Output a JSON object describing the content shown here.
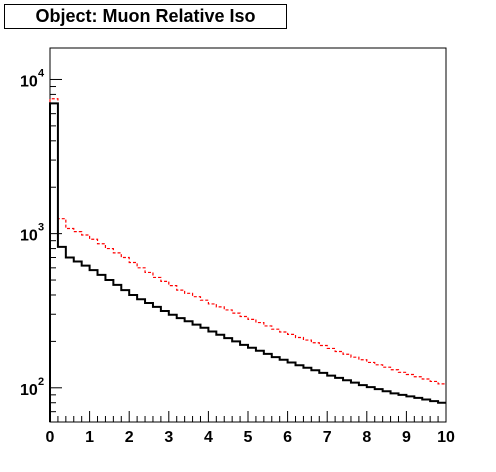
{
  "chart_data": {
    "type": "histogram",
    "title": "Object: Muon Relative Iso",
    "xlabel": "",
    "ylabel": "",
    "xlim": [
      0,
      10
    ],
    "ylim": [
      60,
      16000
    ],
    "yscale": "log",
    "grid": false,
    "x_ticks": [
      "0",
      "1",
      "2",
      "3",
      "4",
      "5",
      "6",
      "7",
      "8",
      "9",
      "10"
    ],
    "y_ticks": [
      {
        "base": "10",
        "exp": "2",
        "value": 100
      },
      {
        "base": "10",
        "exp": "3",
        "value": 1000
      },
      {
        "base": "10",
        "exp": "4",
        "value": 10000
      }
    ],
    "bin_edges_step": 0.2,
    "series": [
      {
        "color": "#ff0000",
        "style": "dashed",
        "values": [
          7500,
          1250,
          1080,
          1030,
          980,
          920,
          860,
          800,
          750,
          700,
          650,
          600,
          560,
          520,
          490,
          460,
          430,
          410,
          390,
          370,
          350,
          335,
          320,
          305,
          290,
          278,
          265,
          252,
          240,
          230,
          222,
          212,
          204,
          196,
          188,
          180,
          172,
          165,
          158,
          152,
          146,
          141,
          136,
          131,
          126,
          122,
          118,
          114,
          110,
          106
        ]
      },
      {
        "color": "#000000",
        "style": "solid",
        "values": [
          7000,
          820,
          700,
          660,
          620,
          580,
          540,
          500,
          465,
          430,
          400,
          375,
          355,
          335,
          315,
          298,
          283,
          270,
          257,
          245,
          232,
          221,
          210,
          200,
          190,
          182,
          174,
          166,
          158,
          152,
          146,
          140,
          135,
          130,
          125,
          120,
          116,
          112,
          108,
          104,
          101,
          98,
          95,
          92,
          90,
          88,
          86,
          84,
          82,
          80
        ]
      }
    ]
  }
}
